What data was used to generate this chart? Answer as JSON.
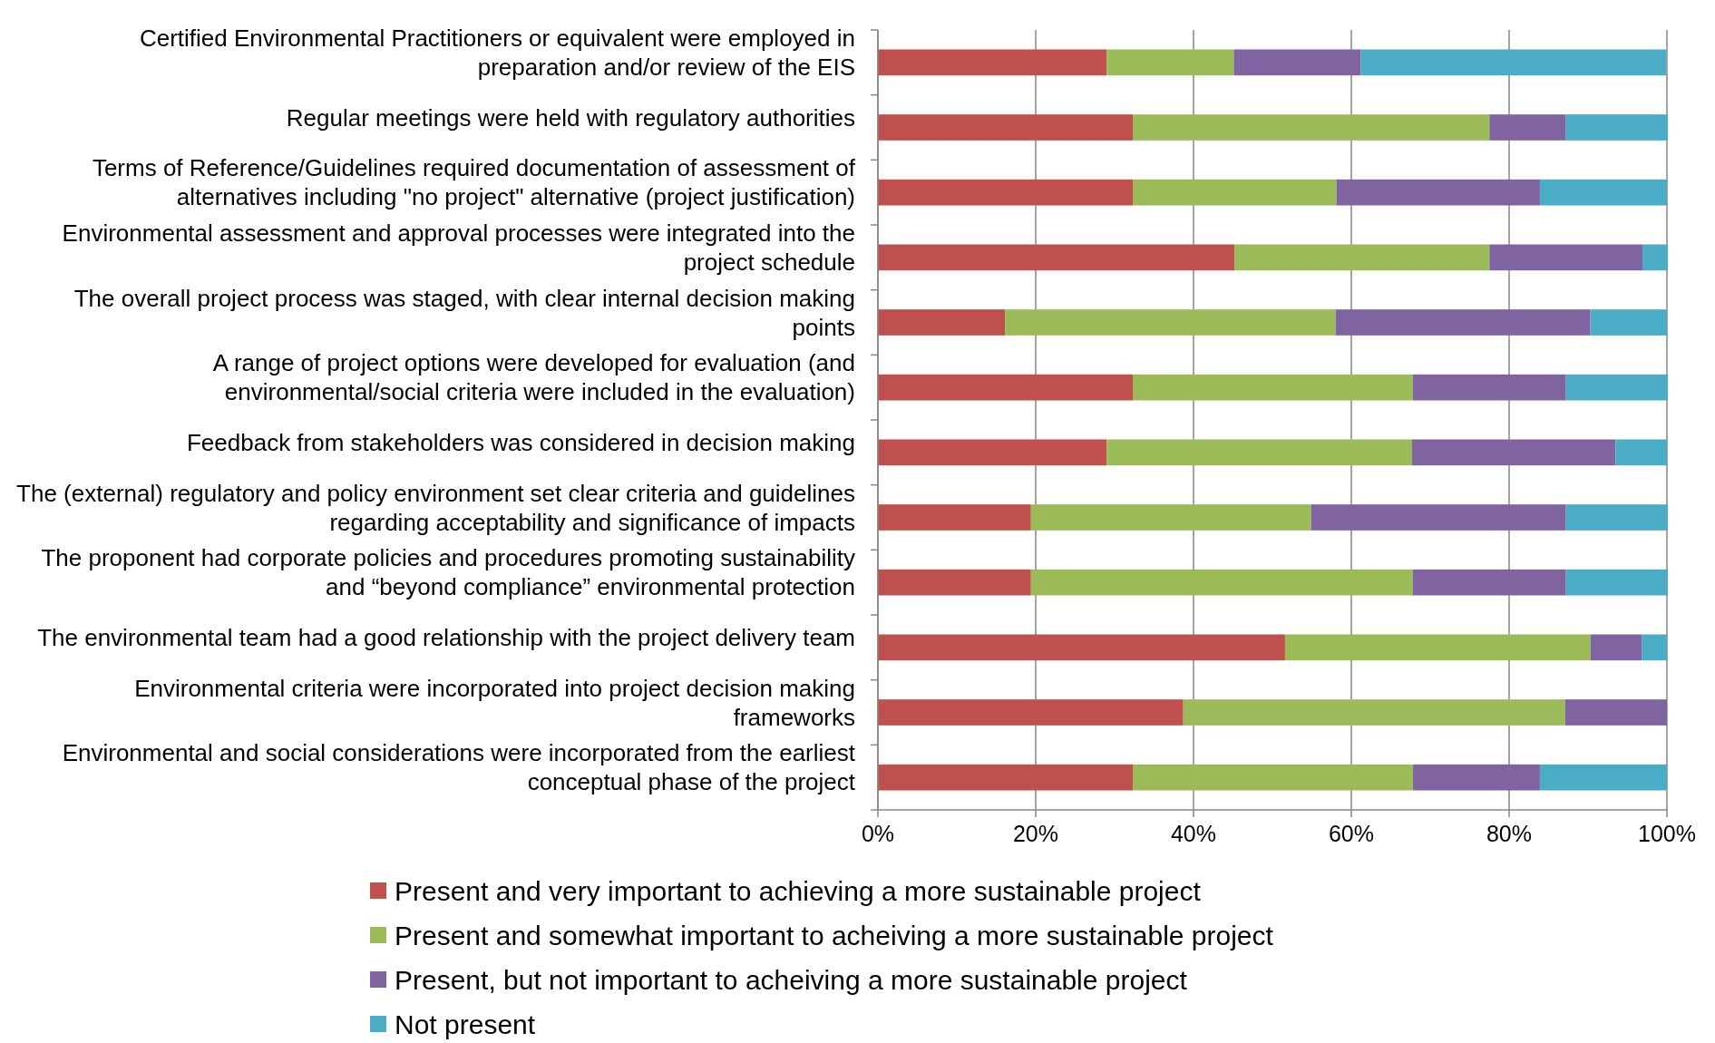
{
  "chart_data": {
    "type": "bar",
    "orientation": "horizontal",
    "stacked": true,
    "categories": [
      "Certified Environmental Practitioners or equivalent were employed in preparation and/or review of the EIS",
      "Regular meetings were held with regulatory authorities",
      "Terms of Reference/Guidelines required documentation of assessment of alternatives including \"no project\" alternative (project justification)",
      "Environmental assessment and approval processes were integrated into the project schedule",
      "The overall project process was staged, with clear internal decision making points",
      "A range of project options were developed for evaluation (and environmental/social criteria were included in the evaluation)",
      "Feedback from stakeholders was considered in decision making",
      "The (external) regulatory and policy environment set clear criteria and guidelines regarding acceptability and significance of impacts",
      "The proponent had corporate policies and procedures promoting sustainability and “beyond compliance” environmental protection",
      "The environmental team had a good relationship with the project delivery team",
      "Environmental criteria were incorporated into project decision making frameworks",
      "Environmental and social considerations were incorporated from the earliest conceptual phase of the project"
    ],
    "series": [
      {
        "name": "Present and very important to achieving a more sustainable project",
        "color": "#c0504d",
        "values": [
          29.0,
          32.3,
          32.3,
          45.2,
          16.1,
          32.3,
          29.0,
          19.4,
          19.4,
          51.6,
          38.7,
          32.3
        ]
      },
      {
        "name": "Present and somewhat important to acheiving a more sustainable project",
        "color": "#9bbb59",
        "values": [
          16.1,
          45.2,
          25.8,
          32.3,
          41.9,
          35.5,
          38.7,
          35.5,
          48.4,
          38.7,
          48.4,
          35.5
        ]
      },
      {
        "name": "Present, but not important to acheiving a more sustainable project",
        "color": "#8064a2",
        "values": [
          16.1,
          9.7,
          25.8,
          19.4,
          32.3,
          19.4,
          25.8,
          32.3,
          19.4,
          6.5,
          12.9,
          16.1
        ]
      },
      {
        "name": "Not present",
        "color": "#4bacc6",
        "values": [
          38.7,
          12.9,
          16.1,
          3.2,
          9.7,
          12.9,
          6.5,
          12.9,
          12.9,
          3.2,
          0,
          16.1
        ]
      }
    ],
    "xlim": [
      0,
      100
    ],
    "xticks": [
      {
        "value": 0,
        "label": "0%"
      },
      {
        "value": 20,
        "label": "20%"
      },
      {
        "value": 40,
        "label": "40%"
      },
      {
        "value": 60,
        "label": "60%"
      },
      {
        "value": 80,
        "label": "80%"
      },
      {
        "value": 100,
        "label": "100%"
      }
    ],
    "grid": "x",
    "legend": "bottom"
  }
}
